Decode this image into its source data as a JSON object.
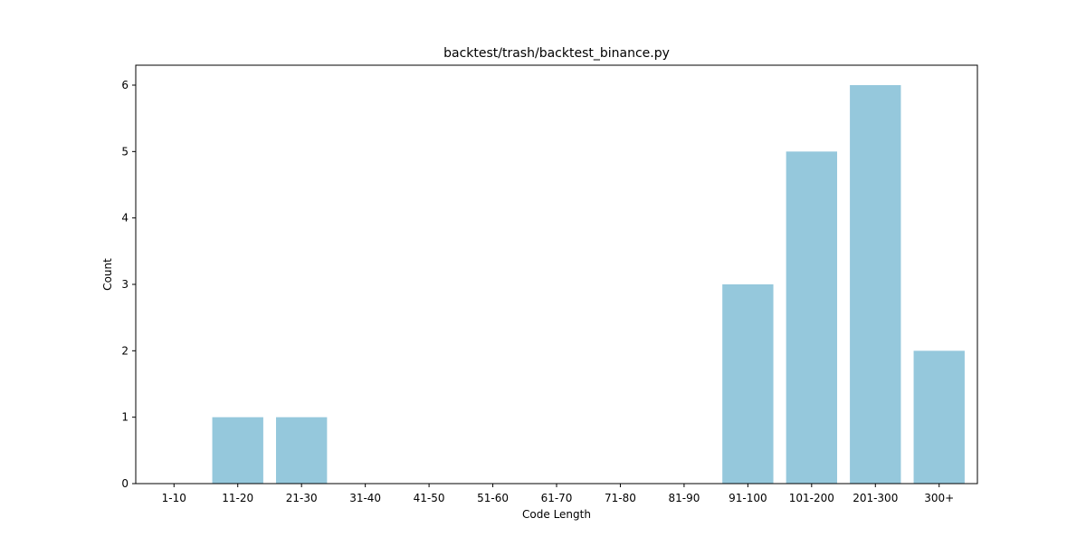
{
  "chart_data": {
    "type": "bar",
    "title": "backtest/trash/backtest_binance.py",
    "xlabel": "Code Length",
    "ylabel": "Count",
    "categories": [
      "1-10",
      "11-20",
      "21-30",
      "31-40",
      "41-50",
      "51-60",
      "61-70",
      "71-80",
      "81-90",
      "91-100",
      "101-200",
      "201-300",
      "300+"
    ],
    "values": [
      0,
      1,
      1,
      0,
      0,
      0,
      0,
      0,
      0,
      3,
      5,
      6,
      2
    ],
    "yticks": [
      "0",
      "1",
      "2",
      "3",
      "4",
      "5",
      "6"
    ],
    "ylim": [
      0,
      6.3
    ],
    "grid": false,
    "legend": "none",
    "bar_color": "#95c8dc"
  }
}
